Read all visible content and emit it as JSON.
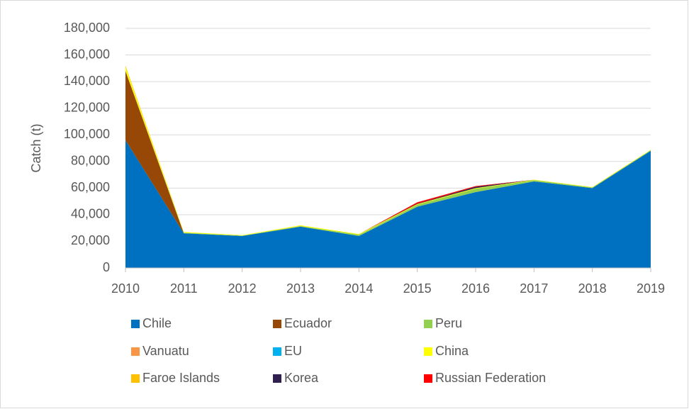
{
  "chart_data": {
    "type": "area",
    "stacked": true,
    "y_label": "Catch (t)",
    "categories": [
      "2010",
      "2011",
      "2012",
      "2013",
      "2014",
      "2015",
      "2016",
      "2017",
      "2018",
      "2019"
    ],
    "ylim": [
      0,
      180000
    ],
    "yticks": [
      {
        "value": 0,
        "label": "0"
      },
      {
        "value": 20000,
        "label": "20,000"
      },
      {
        "value": 40000,
        "label": "40,000"
      },
      {
        "value": 60000,
        "label": "60,000"
      },
      {
        "value": 80000,
        "label": "80,000"
      },
      {
        "value": 100000,
        "label": "100,000"
      },
      {
        "value": 120000,
        "label": "120,000"
      },
      {
        "value": 140000,
        "label": "140,000"
      },
      {
        "value": 160000,
        "label": "160,000"
      },
      {
        "value": 180000,
        "label": "180,000"
      }
    ],
    "grid": true,
    "legend": "bottom",
    "series": [
      {
        "name": "Chile",
        "color": "#0070c0",
        "values": [
          96000,
          26000,
          24000,
          31000,
          24000,
          46000,
          57000,
          65000,
          60000,
          88000
        ]
      },
      {
        "name": "Ecuador",
        "color": "#974706",
        "values": [
          52000,
          0,
          0,
          0,
          0,
          0,
          0,
          0,
          0,
          0
        ]
      },
      {
        "name": "Peru",
        "color": "#92d050",
        "values": [
          0,
          500,
          300,
          500,
          1000,
          1500,
          2500,
          1000,
          500,
          500
        ]
      },
      {
        "name": "Vanuatu",
        "color": "#f79646",
        "values": [
          0,
          0,
          0,
          0,
          0,
          0,
          0,
          0,
          0,
          0
        ]
      },
      {
        "name": "EU",
        "color": "#00b0f0",
        "values": [
          0,
          0,
          0,
          0,
          0,
          0,
          0,
          0,
          0,
          0
        ]
      },
      {
        "name": "China",
        "color": "#ffff00",
        "values": [
          3000,
          500,
          300,
          500,
          500,
          500,
          500,
          300,
          300,
          300
        ]
      },
      {
        "name": "Faroe Islands",
        "color": "#ffc000",
        "values": [
          1000,
          0,
          0,
          0,
          0,
          0,
          0,
          0,
          0,
          0
        ]
      },
      {
        "name": "Korea",
        "color": "#302050",
        "values": [
          0,
          0,
          0,
          0,
          0,
          300,
          1000,
          0,
          0,
          0
        ]
      },
      {
        "name": "Russian Federation",
        "color": "#ff0000",
        "values": [
          0,
          0,
          0,
          0,
          0,
          1000,
          500,
          0,
          0,
          0
        ]
      }
    ]
  }
}
